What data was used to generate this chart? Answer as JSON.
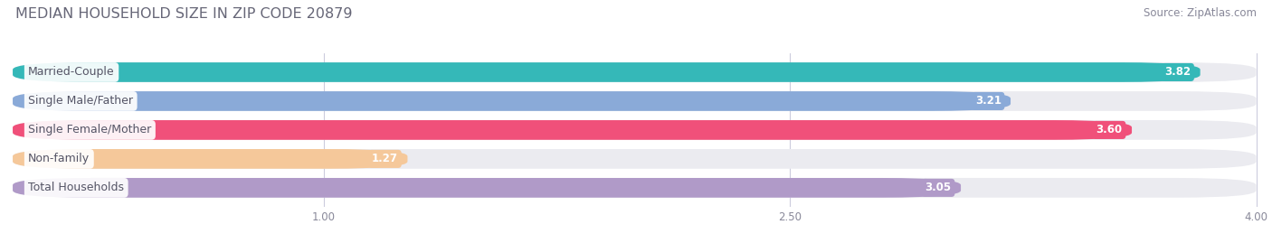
{
  "title": "MEDIAN HOUSEHOLD SIZE IN ZIP CODE 20879",
  "source": "Source: ZipAtlas.com",
  "categories": [
    "Married-Couple",
    "Single Male/Father",
    "Single Female/Mother",
    "Non-family",
    "Total Households"
  ],
  "values": [
    3.82,
    3.21,
    3.6,
    1.27,
    3.05
  ],
  "bar_colors": [
    "#35b8b8",
    "#8aaad8",
    "#f0507a",
    "#f5c89a",
    "#b09ac8"
  ],
  "xlim_min": 0.0,
  "xlim_max": 4.0,
  "xticks": [
    1.0,
    2.5,
    4.0
  ],
  "background_color": "#ffffff",
  "bar_bg_color": "#ebebf0",
  "title_fontsize": 11.5,
  "source_fontsize": 8.5,
  "label_fontsize": 9,
  "value_fontsize": 8.5,
  "title_color": "#666677",
  "label_color": "#555566",
  "source_color": "#888899"
}
